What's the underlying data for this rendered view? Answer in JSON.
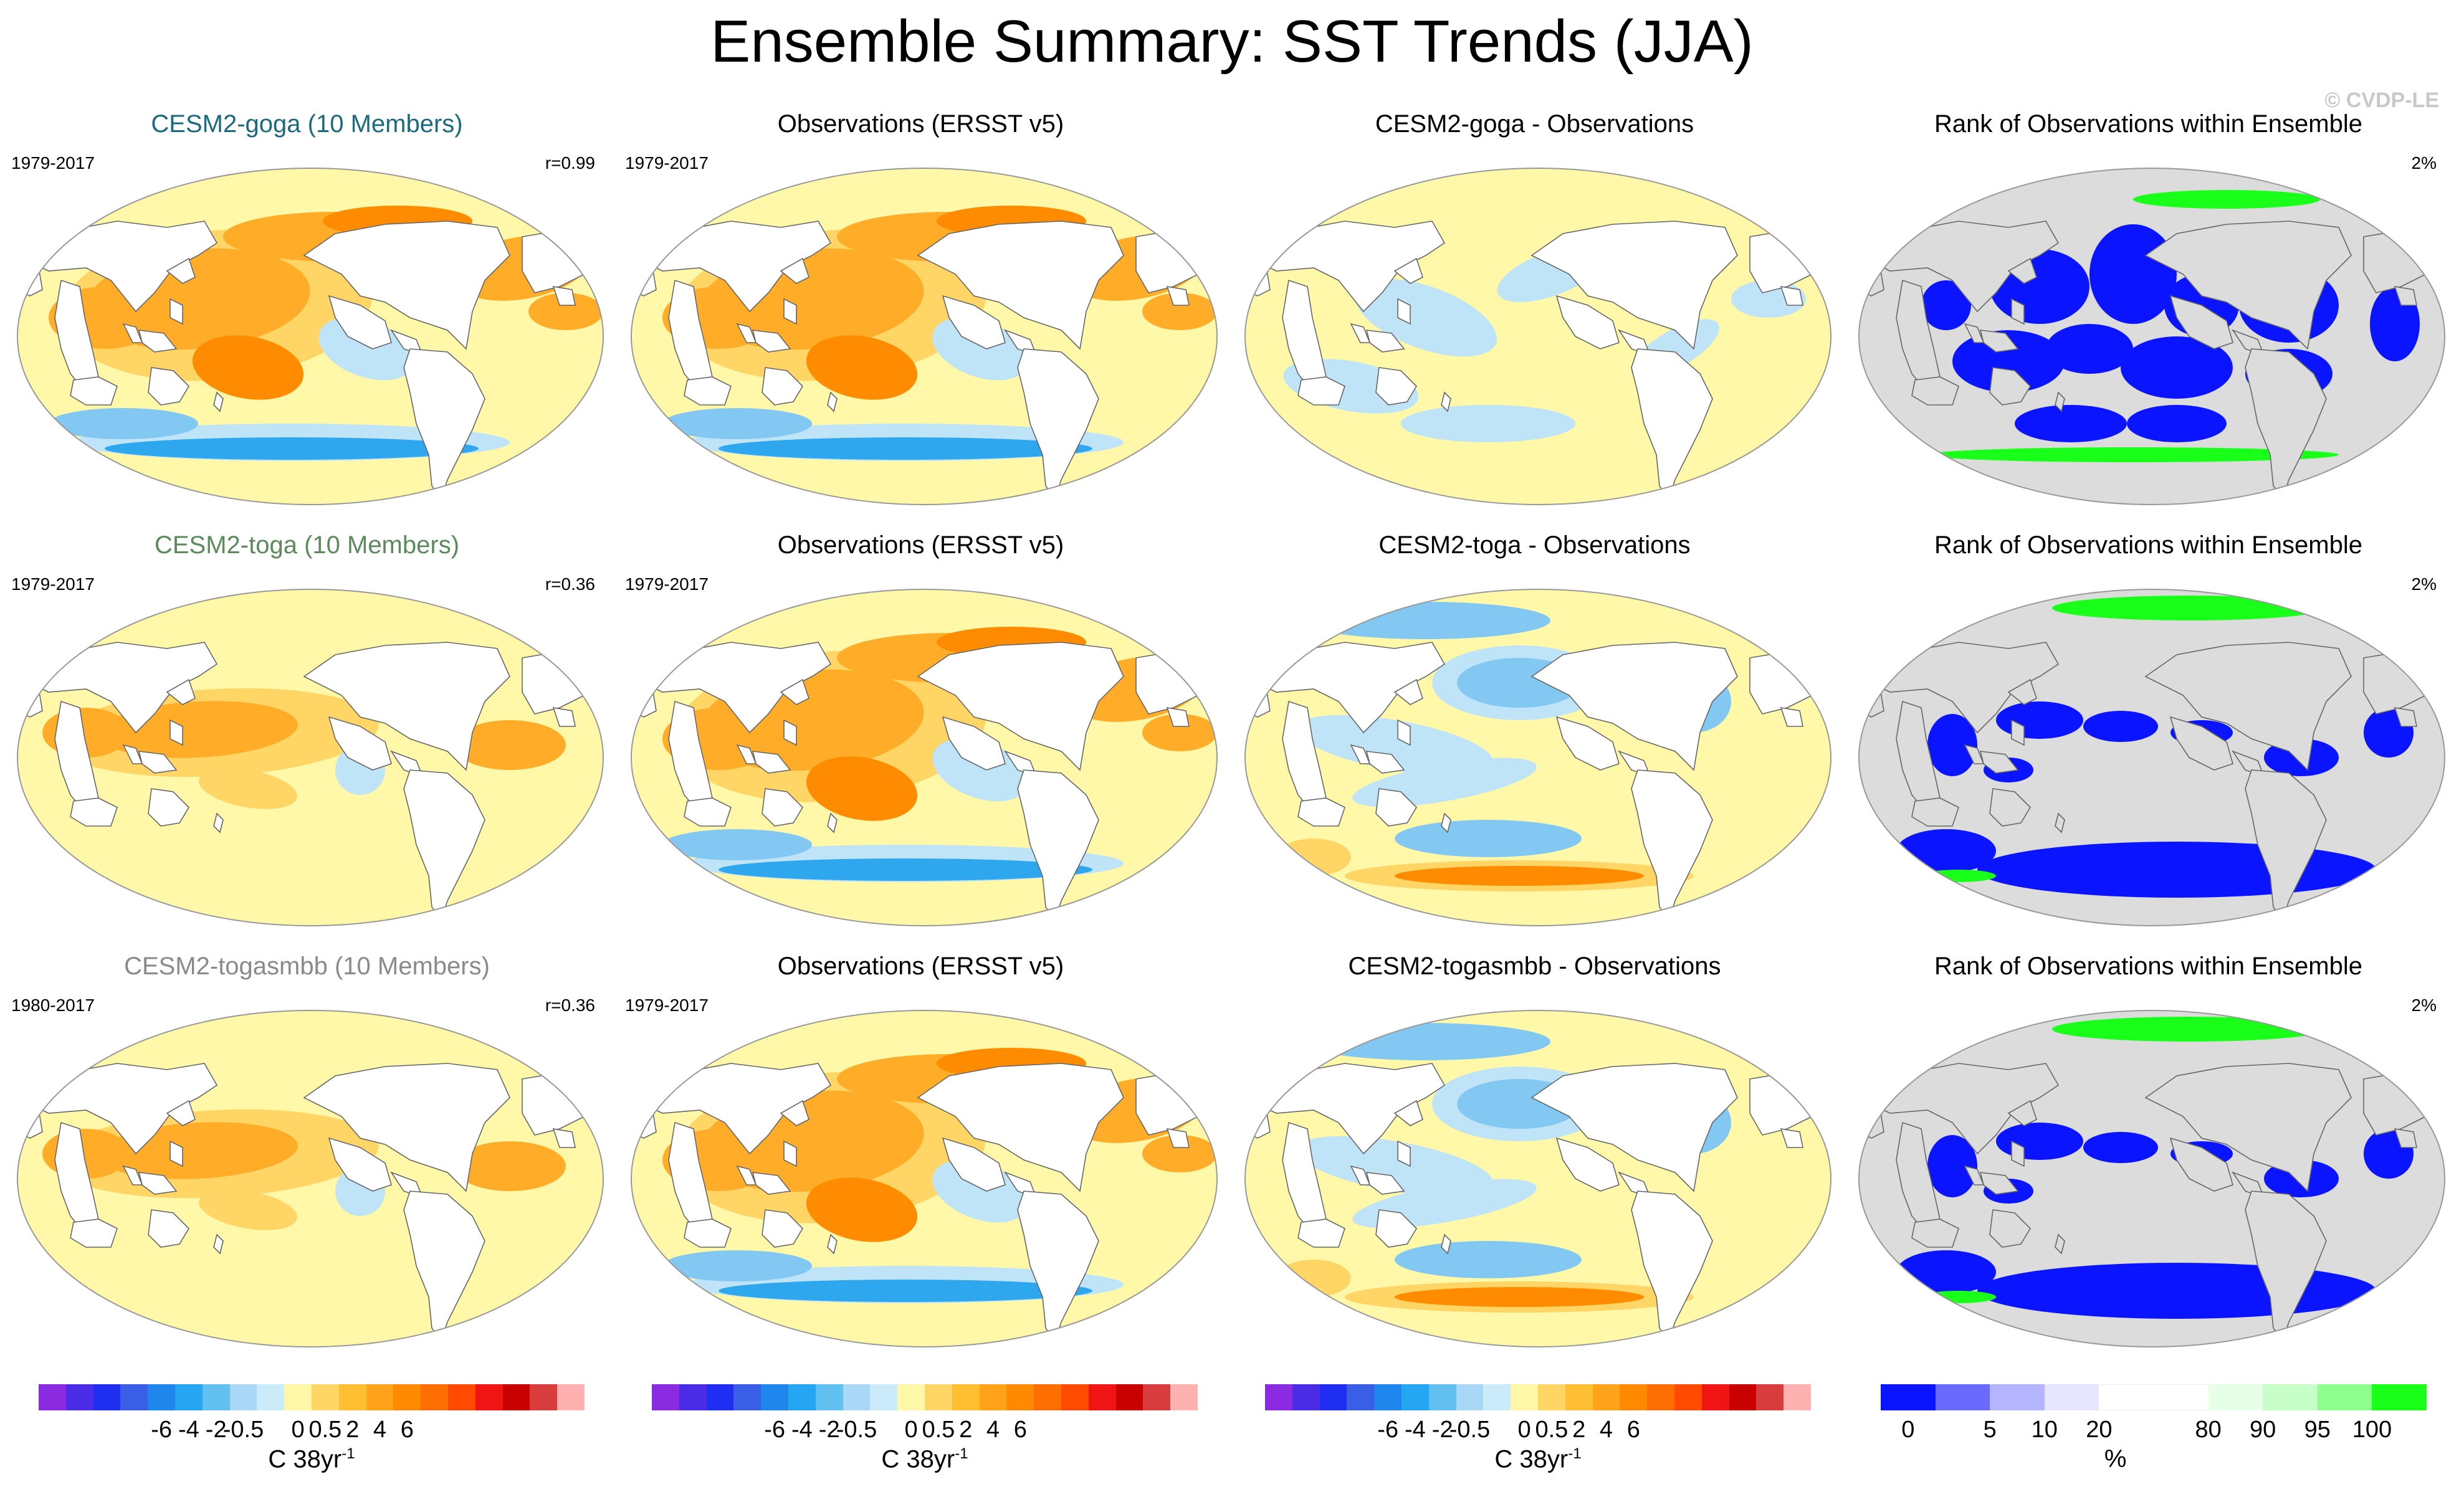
{
  "title": "Ensemble Summary: SST Trends (JJA)",
  "credit": "© CVDP-LE",
  "colors": {
    "ocean_default": "#fff8a8",
    "land": "#ffffff",
    "rank_land": "#dcdcdc",
    "coast": "#666666",
    "warm_1": "#ffd666",
    "warm_2": "#ffad28",
    "warm_3": "#ff8c00",
    "warm_4": "#ff5a00",
    "cool_1": "#bfe3f7",
    "cool_2": "#82c8f2",
    "cool_3": "#2ea7ef",
    "rank_low": "#0a14ff",
    "rank_high": "#19ff19"
  },
  "rows": [
    {
      "model": {
        "title": "CESM2-goga (10 Members)",
        "title_color": "#1a6a80",
        "period": "1979-2017",
        "stat": "r=0.99",
        "pattern": "warm_full"
      },
      "obs": {
        "title": "Observations (ERSST v5)",
        "period": "1979-2017",
        "pattern": "warm_full"
      },
      "diff": {
        "title": "CESM2-goga - Observations",
        "pattern": "diff_small"
      },
      "rank": {
        "title": "Rank of Observations within Ensemble",
        "stat": "2%",
        "pattern": "rank_a"
      }
    },
    {
      "model": {
        "title": "CESM2-toga (10 Members)",
        "title_color": "#5b8a5b",
        "period": "1979-2017",
        "stat": "r=0.36",
        "pattern": "warm_tropics"
      },
      "obs": {
        "title": "Observations (ERSST v5)",
        "period": "1979-2017",
        "pattern": "warm_full"
      },
      "diff": {
        "title": "CESM2-toga - Observations",
        "pattern": "diff_large"
      },
      "rank": {
        "title": "Rank of Observations within Ensemble",
        "stat": "2%",
        "pattern": "rank_b"
      }
    },
    {
      "model": {
        "title": "CESM2-togasmbb (10 Members)",
        "title_color": "#8a8a8a",
        "period": "1980-2017",
        "stat": "r=0.36",
        "pattern": "warm_tropics"
      },
      "obs": {
        "title": "Observations (ERSST v5)",
        "period": "1979-2017",
        "pattern": "warm_full"
      },
      "diff": {
        "title": "CESM2-togasmbb - Observations",
        "pattern": "diff_large"
      },
      "rank": {
        "title": "Rank of Observations within Ensemble",
        "stat": "2%",
        "pattern": "rank_b"
      }
    }
  ],
  "trend_colorbar": {
    "colors": [
      "#8a2be2",
      "#4a2be6",
      "#1f2ef0",
      "#3a5ee6",
      "#1f86ee",
      "#25a6f2",
      "#63c1f2",
      "#a8d8f5",
      "#ccebfa",
      "#fff8a8",
      "#ffd666",
      "#ffbf33",
      "#ffa31a",
      "#ff8a00",
      "#ff6e00",
      "#ff4a00",
      "#f01414",
      "#c80000",
      "#d83c3c",
      "#ffb0b0"
    ],
    "ticks": [
      "-6",
      "-4",
      "-2",
      "-0.5",
      "0",
      "0.5",
      "2",
      "4",
      "6"
    ],
    "label_main": "C 38yr",
    "label_sup": "-1"
  },
  "rank_colorbar": {
    "colors": [
      "#0a14ff",
      "#6a6aff",
      "#b4b4ff",
      "#e6e6ff",
      "#ffffff",
      "#ffffff",
      "#e6ffe6",
      "#c8ffc8",
      "#8cff8c",
      "#19ff19"
    ],
    "ticks": [
      "0",
      "5",
      "10",
      "20",
      "80",
      "90",
      "95",
      "100"
    ],
    "label_main": "%"
  }
}
